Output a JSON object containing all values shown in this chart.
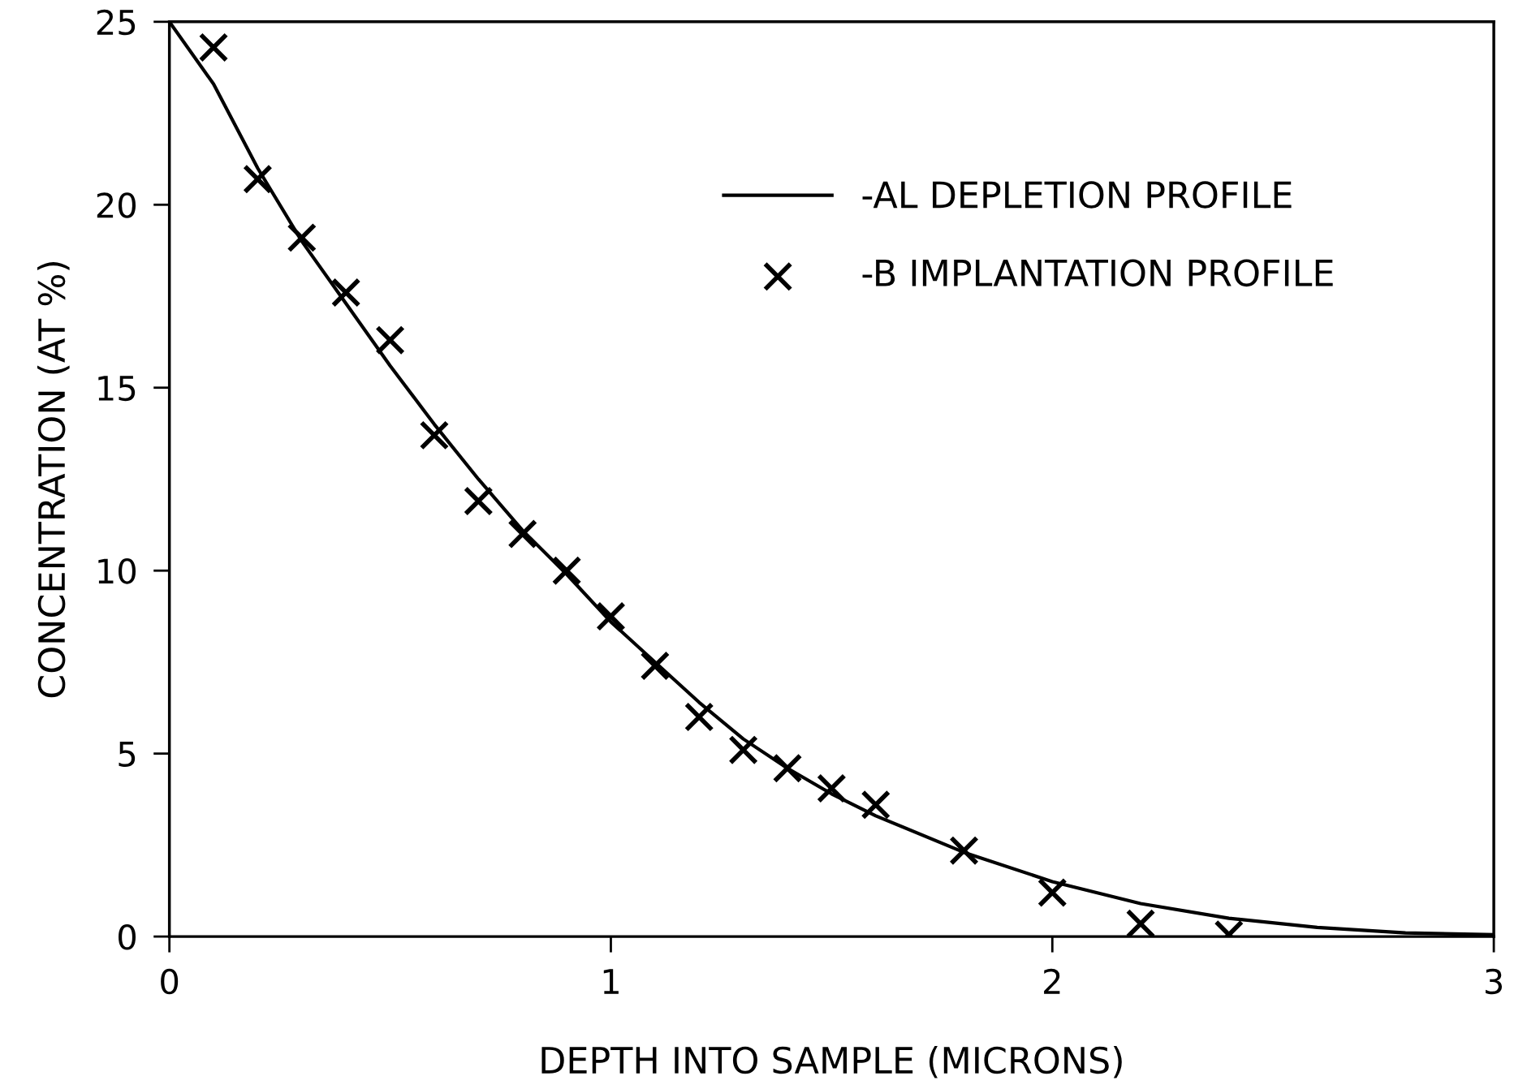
{
  "chart_data": {
    "type": "line",
    "xlabel": "DEPTH INTO SAMPLE (MICRONS)",
    "ylabel": "CONCENTRATION (AT %)",
    "xlim": [
      0,
      3
    ],
    "ylim": [
      0,
      25
    ],
    "xticks": [
      0,
      1,
      2,
      3
    ],
    "yticks": [
      0,
      5,
      10,
      15,
      20,
      25
    ],
    "grid": false,
    "legend": "top right",
    "series": [
      {
        "name": "-AL DEPLETION PROFILE",
        "color": "#000000",
        "line_style": "solid",
        "marker": "none",
        "x": [
          0,
          0.1,
          0.2,
          0.3,
          0.4,
          0.5,
          0.6,
          0.7,
          0.8,
          0.9,
          1.0,
          1.1,
          1.2,
          1.3,
          1.4,
          1.5,
          1.6,
          1.8,
          2.0,
          2.2,
          2.4,
          2.6,
          2.8,
          3.0
        ],
        "values": [
          25,
          23.3,
          21.0,
          19.0,
          17.3,
          15.6,
          14.0,
          12.5,
          11.1,
          9.9,
          8.6,
          7.5,
          6.4,
          5.4,
          4.6,
          3.9,
          3.3,
          2.3,
          1.5,
          0.9,
          0.5,
          0.25,
          0.1,
          0.05
        ]
      },
      {
        "name": "-B IMPLANTATION PROFILE",
        "type": "scatter",
        "color": "#000000",
        "marker": "cross",
        "x": [
          0.1,
          0.2,
          0.3,
          0.4,
          0.5,
          0.6,
          0.7,
          0.8,
          0.9,
          1.0,
          1.1,
          1.2,
          1.3,
          1.4,
          1.5,
          1.6,
          1.8,
          2.0,
          2.2,
          2.4
        ],
        "values": [
          24.3,
          20.7,
          19.1,
          17.6,
          16.3,
          13.7,
          11.9,
          11.0,
          10.0,
          8.75,
          7.4,
          6.0,
          5.1,
          4.6,
          4.05,
          3.6,
          2.35,
          1.2,
          0.35,
          0.05
        ]
      }
    ]
  }
}
